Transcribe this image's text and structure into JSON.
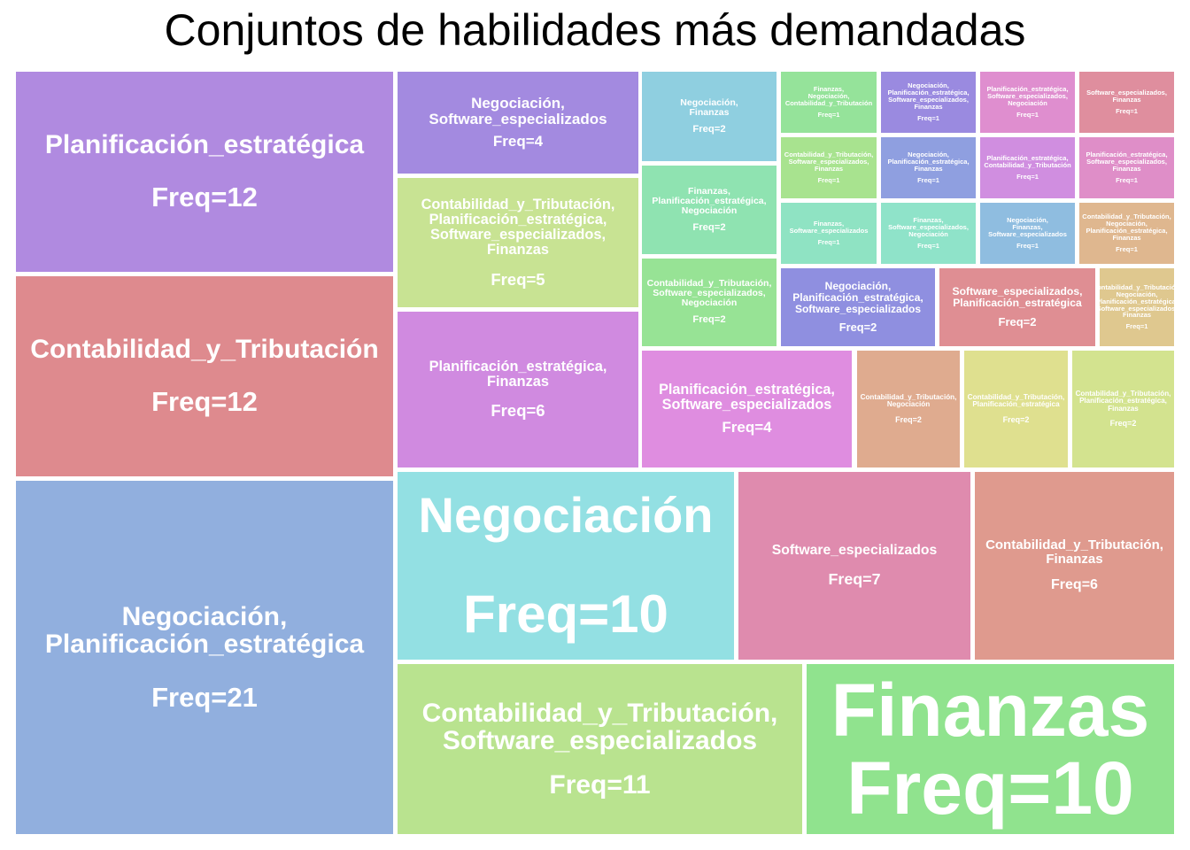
{
  "chart_data": {
    "type": "treemap",
    "title": "Conjuntos de habilidades más demandadas",
    "items": [
      {
        "label": "Negociación,\nPlanificación_estratégica",
        "value": 21,
        "freq": "Freq=21",
        "color": "#91afde"
      },
      {
        "label": "Planificación_estratégica",
        "value": 12,
        "freq": "Freq=12",
        "color": "#b08ae0"
      },
      {
        "label": "Contabilidad_y_Tributación",
        "value": 12,
        "freq": "Freq=12",
        "color": "#de8a8e"
      },
      {
        "label": "Contabilidad_y_Tributación,\nSoftware_especializados",
        "value": 11,
        "freq": "Freq=11",
        "color": "#b9e38f"
      },
      {
        "label": "Negociación",
        "value": 10,
        "freq": "Freq=10",
        "color": "#93e0e3"
      },
      {
        "label": "Finanzas",
        "value": 10,
        "freq": "Freq=10",
        "color": "#90e38e"
      },
      {
        "label": "Software_especializados",
        "value": 7,
        "freq": "Freq=7",
        "color": "#df8bae"
      },
      {
        "label": "Contabilidad_y_Tributación,\nFinanzas",
        "value": 6,
        "freq": "Freq=6",
        "color": "#df9a8e"
      },
      {
        "label": "Planificación_estratégica,\nFinanzas",
        "value": 6,
        "freq": "Freq=6",
        "color": "#d08ae0"
      },
      {
        "label": "Contabilidad_y_Tributación,\nPlanificación_estratégica,\nSoftware_especializados,\nFinanzas",
        "value": 5,
        "freq": "Freq=5",
        "color": "#c8e393"
      },
      {
        "label": "Negociación,\nSoftware_especializados",
        "value": 4,
        "freq": "Freq=4",
        "color": "#a38ae0"
      },
      {
        "label": "Planificación_estratégica,\nSoftware_especializados",
        "value": 4,
        "freq": "Freq=4",
        "color": "#df8de0"
      },
      {
        "label": "Negociación,\nFinanzas",
        "value": 2,
        "freq": "Freq=2",
        "color": "#8fcfe0"
      },
      {
        "label": "Finanzas,\nPlanificación_estratégica,\nNegociación",
        "value": 2,
        "freq": "Freq=2",
        "color": "#8fe3b1"
      },
      {
        "label": "Contabilidad_y_Tributación,\nSoftware_especializados,\nNegociación",
        "value": 2,
        "freq": "Freq=2",
        "color": "#97e395"
      },
      {
        "label": "Negociación,\nPlanificación_estratégica,\nSoftware_especializados",
        "value": 2,
        "freq": "Freq=2",
        "color": "#8f8fe0"
      },
      {
        "label": "Software_especializados,\nPlanificación_estratégica",
        "value": 2,
        "freq": "Freq=2",
        "color": "#df8e93"
      },
      {
        "label": "Contabilidad_y_Tributación,\nNegociación",
        "value": 2,
        "freq": "Freq=2",
        "color": "#dfab8f"
      },
      {
        "label": "Contabilidad_y_Tributación,\nPlanificación_estratégica",
        "value": 2,
        "freq": "Freq=2",
        "color": "#dfe08f"
      },
      {
        "label": "Contabilidad_y_Tributación,\nPlanificación_estratégica,\nFinanzas",
        "value": 2,
        "freq": "Freq=2",
        "color": "#d3e38f"
      },
      {
        "label": "Finanzas,\nNegociación,\nContabilidad_y_Tributación",
        "value": 1,
        "freq": "Freq=1",
        "color": "#95e39a"
      },
      {
        "label": "Negociación,\nPlanificación_estratégica,\nSoftware_especializados,\nFinanzas",
        "value": 1,
        "freq": "Freq=1",
        "color": "#9a8ae0"
      },
      {
        "label": "Planificación_estratégica,\nSoftware_especializados,\nNegociación",
        "value": 1,
        "freq": "Freq=1",
        "color": "#df8ecf"
      },
      {
        "label": "Software_especializados,\nFinanzas",
        "value": 1,
        "freq": "Freq=1",
        "color": "#df8e9e"
      },
      {
        "label": "Contabilidad_y_Tributación,\nSoftware_especializados,\nFinanzas",
        "value": 1,
        "freq": "Freq=1",
        "color": "#a8e38f"
      },
      {
        "label": "Negociación,\nPlanificación_estratégica,\nFinanzas",
        "value": 1,
        "freq": "Freq=1",
        "color": "#8f9fe0"
      },
      {
        "label": "Planificación_estratégica,\nContabilidad_y_Tributación",
        "value": 1,
        "freq": "Freq=1",
        "color": "#d08ee0"
      },
      {
        "label": "Planificación_estratégica,\nSoftware_especializados,\nFinanzas",
        "value": 1,
        "freq": "Freq=1",
        "color": "#df8ec8"
      },
      {
        "label": "Contabilidad_y_Tributación,\nNegociación,\nPlanificación_estratégica,\nSoftware_especializados,\nFinanzas",
        "value": 1,
        "freq": "Freq=1",
        "color": "#dfc88f"
      },
      {
        "label": "Finanzas,\nSoftware_especializados",
        "value": 1,
        "freq": "Freq=1",
        "color": "#8fe3c3"
      },
      {
        "label": "Finanzas,\nSoftware_especializados,\nNegociación",
        "value": 1,
        "freq": "Freq=1",
        "color": "#8fe3c9"
      },
      {
        "label": "Negociación,\nFinanzas,\nSoftware_especializados",
        "value": 1,
        "freq": "Freq=1",
        "color": "#8fbde0"
      },
      {
        "label": "Contabilidad_y_Tributación,\nNegociación,\nPlanificación_estratégica,\nFinanzas",
        "value": 1,
        "freq": "Freq=1",
        "color": "#dfb78f"
      }
    ]
  }
}
